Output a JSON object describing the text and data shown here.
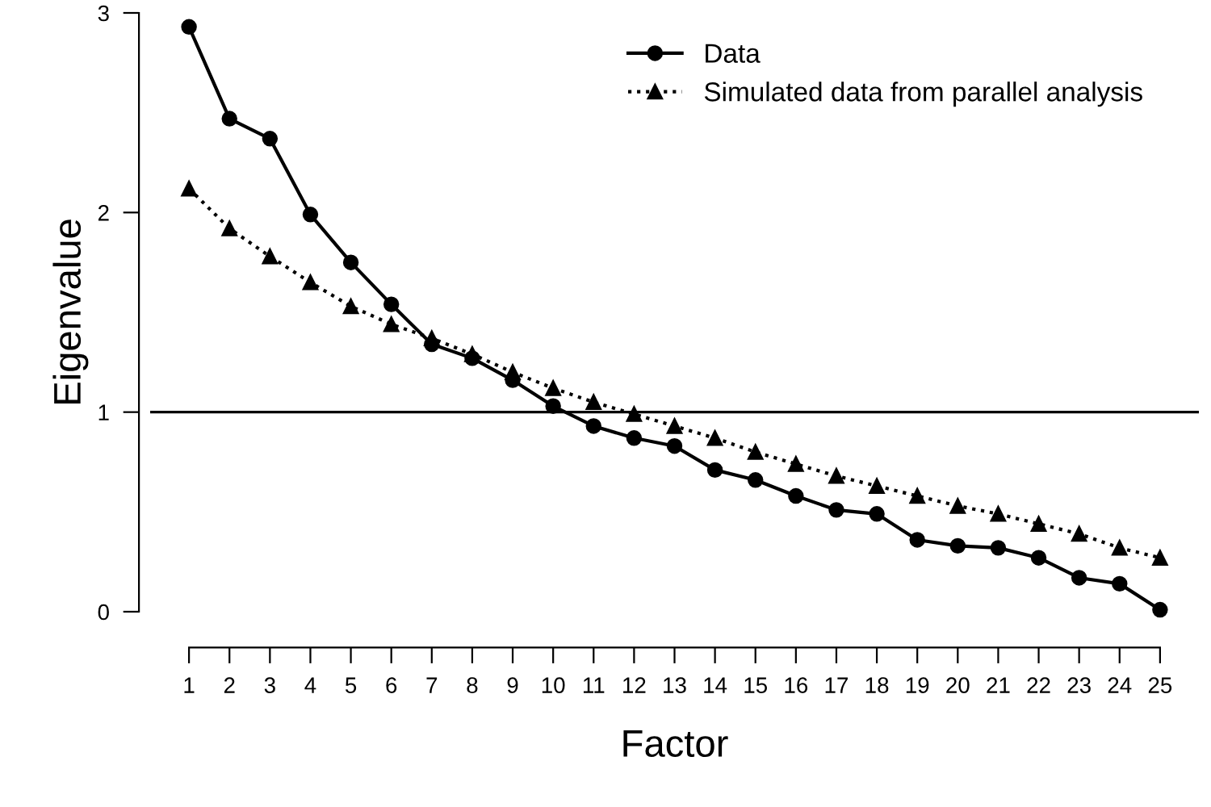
{
  "chart_data": {
    "type": "line",
    "xlabel": "Factor",
    "ylabel": "Eigenvalue",
    "x": [
      1,
      2,
      3,
      4,
      5,
      6,
      7,
      8,
      9,
      10,
      11,
      12,
      13,
      14,
      15,
      16,
      17,
      18,
      19,
      20,
      21,
      22,
      23,
      24,
      25
    ],
    "series": [
      {
        "name": "Data",
        "color": "#000000",
        "marker": "circle",
        "line_style": "solid",
        "values": [
          2.93,
          2.47,
          2.37,
          1.99,
          1.75,
          1.54,
          1.34,
          1.27,
          1.16,
          1.03,
          0.93,
          0.87,
          0.83,
          0.71,
          0.66,
          0.58,
          0.51,
          0.49,
          0.36,
          0.33,
          0.32,
          0.27,
          0.17,
          0.14,
          0.01
        ]
      },
      {
        "name": "Simulated data from parallel analysis",
        "color": "#000000",
        "marker": "triangle",
        "line_style": "dotted",
        "values": [
          2.12,
          1.92,
          1.78,
          1.65,
          1.53,
          1.44,
          1.37,
          1.29,
          1.2,
          1.12,
          1.05,
          0.99,
          0.93,
          0.87,
          0.8,
          0.74,
          0.68,
          0.63,
          0.58,
          0.53,
          0.49,
          0.44,
          0.39,
          0.32,
          0.27
        ]
      }
    ],
    "xlim": [
      0.04,
      25.96
    ],
    "ylim": [
      0,
      3
    ],
    "xticks": [
      1,
      2,
      3,
      4,
      5,
      6,
      7,
      8,
      9,
      10,
      11,
      12,
      13,
      14,
      15,
      16,
      17,
      18,
      19,
      20,
      21,
      22,
      23,
      24,
      25
    ],
    "yticks": [
      0,
      1,
      2,
      3
    ],
    "ref_lines": [
      {
        "axis": "y",
        "value": 1,
        "color": "#000000",
        "line_style": "solid"
      }
    ],
    "grid": false,
    "legend": "top right"
  }
}
